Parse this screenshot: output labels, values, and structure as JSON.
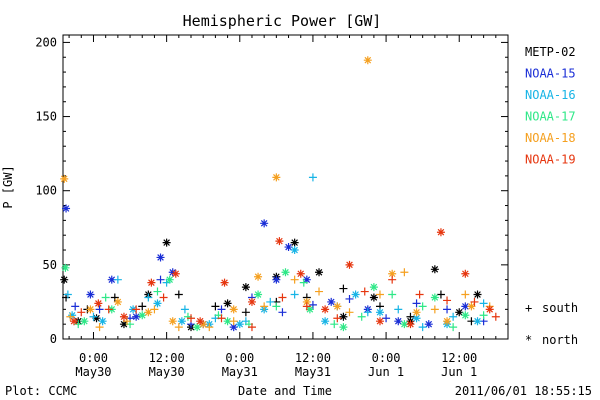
{
  "chart_data": {
    "type": "scatter",
    "title": "Hemispheric Power [GW]",
    "xlabel": "Date and Time",
    "ylabel": "P [GW]",
    "ylim": [
      0,
      205
    ],
    "xlim": [
      -5,
      68
    ],
    "grid": false,
    "legend_position": "right",
    "y_ticks": [
      0,
      50,
      100,
      150,
      200
    ],
    "x_ticks": [
      {
        "x": 0,
        "time": "0:00",
        "date": "May30"
      },
      {
        "x": 12,
        "time": "12:00",
        "date": "May30"
      },
      {
        "x": 24,
        "time": "0:00",
        "date": "May31"
      },
      {
        "x": 36,
        "time": "12:00",
        "date": "May31"
      },
      {
        "x": 48,
        "time": "0:00",
        "date": "Jun 1"
      },
      {
        "x": 60,
        "time": "12:00",
        "date": "Jun 1"
      }
    ],
    "markers": {
      "south": "+",
      "north": "*"
    },
    "series": [
      {
        "name": "METP-02",
        "color": "#000000",
        "south": [
          [
            -4.5,
            28
          ],
          [
            -1,
            20
          ],
          [
            3.5,
            28
          ],
          [
            8,
            22
          ],
          [
            14,
            30
          ],
          [
            20,
            22
          ],
          [
            25,
            18
          ],
          [
            30,
            25
          ],
          [
            35,
            28
          ],
          [
            41,
            34
          ],
          [
            47,
            22
          ],
          [
            52,
            15
          ],
          [
            57,
            30
          ],
          [
            62,
            12
          ]
        ],
        "north": [
          [
            -4.8,
            40
          ],
          [
            -2.5,
            12
          ],
          [
            0.5,
            14
          ],
          [
            5,
            10
          ],
          [
            9,
            30
          ],
          [
            12,
            65
          ],
          [
            16,
            8
          ],
          [
            22,
            24
          ],
          [
            25,
            35
          ],
          [
            30,
            42
          ],
          [
            33,
            65
          ],
          [
            37,
            45
          ],
          [
            41,
            15
          ],
          [
            46,
            28
          ],
          [
            52,
            12
          ],
          [
            56,
            47
          ],
          [
            60,
            18
          ],
          [
            63,
            30
          ]
        ]
      },
      {
        "name": "NOAA-15",
        "color": "#1a2ed6",
        "south": [
          [
            -3,
            22
          ],
          [
            1,
            20
          ],
          [
            6,
            14
          ],
          [
            11,
            40
          ],
          [
            16,
            10
          ],
          [
            21,
            20
          ],
          [
            26,
            28
          ],
          [
            31,
            18
          ],
          [
            36,
            23
          ],
          [
            42,
            27
          ],
          [
            48,
            14
          ],
          [
            53,
            24
          ],
          [
            58,
            20
          ],
          [
            64,
            12
          ]
        ],
        "north": [
          [
            -4.5,
            88
          ],
          [
            -0.5,
            30
          ],
          [
            3,
            40
          ],
          [
            7,
            15
          ],
          [
            11,
            55
          ],
          [
            13,
            45
          ],
          [
            18,
            10
          ],
          [
            23,
            8
          ],
          [
            28,
            78
          ],
          [
            30,
            40
          ],
          [
            32,
            62
          ],
          [
            35,
            40
          ],
          [
            39,
            25
          ],
          [
            45,
            20
          ],
          [
            50,
            12
          ],
          [
            55,
            10
          ],
          [
            61,
            22
          ]
        ]
      },
      {
        "name": "NOAA-16",
        "color": "#17b4e6",
        "south": [
          [
            -4.2,
            30
          ],
          [
            0,
            15
          ],
          [
            4,
            40
          ],
          [
            9,
            28
          ],
          [
            12,
            38
          ],
          [
            15,
            20
          ],
          [
            20,
            14
          ],
          [
            25,
            12
          ],
          [
            29,
            25
          ],
          [
            33,
            30
          ],
          [
            36,
            109
          ],
          [
            40,
            22
          ],
          [
            45,
            18
          ],
          [
            50,
            20
          ],
          [
            54,
            8
          ],
          [
            59,
            15
          ],
          [
            64,
            24
          ]
        ],
        "north": [
          [
            -3.5,
            16
          ],
          [
            1.5,
            12
          ],
          [
            6.5,
            20
          ],
          [
            10.5,
            24
          ],
          [
            14.5,
            12
          ],
          [
            19,
            10
          ],
          [
            24,
            10
          ],
          [
            28,
            20
          ],
          [
            33,
            60
          ],
          [
            38,
            12
          ],
          [
            43,
            30
          ],
          [
            47,
            18
          ],
          [
            53,
            14
          ],
          [
            58,
            10
          ],
          [
            63,
            12
          ]
        ]
      },
      {
        "name": "NOAA-17",
        "color": "#2ee887",
        "south": [
          [
            -2.5,
            10
          ],
          [
            2,
            28
          ],
          [
            6,
            10
          ],
          [
            10.5,
            32
          ],
          [
            15.5,
            15
          ],
          [
            20.5,
            16
          ],
          [
            25.5,
            10
          ],
          [
            30,
            22
          ],
          [
            34.5,
            38
          ],
          [
            39.5,
            10
          ],
          [
            44,
            15
          ],
          [
            49,
            30
          ],
          [
            54,
            22
          ],
          [
            59,
            8
          ],
          [
            64,
            16
          ]
        ],
        "north": [
          [
            -4.6,
            48
          ],
          [
            -1.5,
            12
          ],
          [
            3,
            20
          ],
          [
            8,
            16
          ],
          [
            12.5,
            40
          ],
          [
            17,
            8
          ],
          [
            22,
            12
          ],
          [
            27,
            30
          ],
          [
            31.5,
            45
          ],
          [
            35.5,
            20
          ],
          [
            41,
            8
          ],
          [
            46,
            35
          ],
          [
            51,
            10
          ],
          [
            56,
            28
          ],
          [
            61,
            16
          ]
        ]
      },
      {
        "name": "NOAA-18",
        "color": "#f5a020",
        "south": [
          [
            -3.8,
            15
          ],
          [
            1,
            8
          ],
          [
            5.5,
            12
          ],
          [
            10,
            20
          ],
          [
            14,
            8
          ],
          [
            19,
            8
          ],
          [
            23,
            12
          ],
          [
            28,
            22
          ],
          [
            33,
            40
          ],
          [
            37,
            32
          ],
          [
            42,
            18
          ],
          [
            47,
            30
          ],
          [
            51,
            45
          ],
          [
            56,
            20
          ],
          [
            61,
            30
          ],
          [
            65,
            22
          ]
        ],
        "north": [
          [
            -4.8,
            108
          ],
          [
            -0.5,
            20
          ],
          [
            4,
            25
          ],
          [
            9,
            18
          ],
          [
            13,
            12
          ],
          [
            18,
            10
          ],
          [
            23,
            20
          ],
          [
            27,
            42
          ],
          [
            30,
            109
          ],
          [
            35,
            25
          ],
          [
            40,
            22
          ],
          [
            45,
            188
          ],
          [
            49,
            44
          ],
          [
            53,
            18
          ],
          [
            58,
            12
          ],
          [
            62,
            22
          ]
        ]
      },
      {
        "name": "NOAA-19",
        "color": "#e6360f",
        "south": [
          [
            -2,
            18
          ],
          [
            2.5,
            20
          ],
          [
            7,
            20
          ],
          [
            11.5,
            28
          ],
          [
            16,
            14
          ],
          [
            21,
            14
          ],
          [
            26,
            8
          ],
          [
            31,
            28
          ],
          [
            35,
            22
          ],
          [
            40,
            14
          ],
          [
            44.5,
            32
          ],
          [
            49,
            40
          ],
          [
            53.5,
            30
          ],
          [
            58,
            26
          ],
          [
            62.5,
            25
          ],
          [
            66,
            15
          ]
        ],
        "north": [
          [
            -3.2,
            12
          ],
          [
            0.8,
            24
          ],
          [
            5,
            15
          ],
          [
            9.5,
            38
          ],
          [
            13.5,
            44
          ],
          [
            17.5,
            12
          ],
          [
            21.5,
            38
          ],
          [
            26,
            25
          ],
          [
            30.5,
            66
          ],
          [
            34,
            44
          ],
          [
            38,
            20
          ],
          [
            42,
            50
          ],
          [
            47,
            12
          ],
          [
            52,
            10
          ],
          [
            57,
            72
          ],
          [
            61,
            44
          ],
          [
            65,
            20
          ]
        ]
      }
    ]
  },
  "footer": {
    "left": "Plot: CCMC",
    "right": "2011/06/01  18:55:15"
  },
  "legend_markers": {
    "south_label": "south",
    "north_label": "north"
  }
}
